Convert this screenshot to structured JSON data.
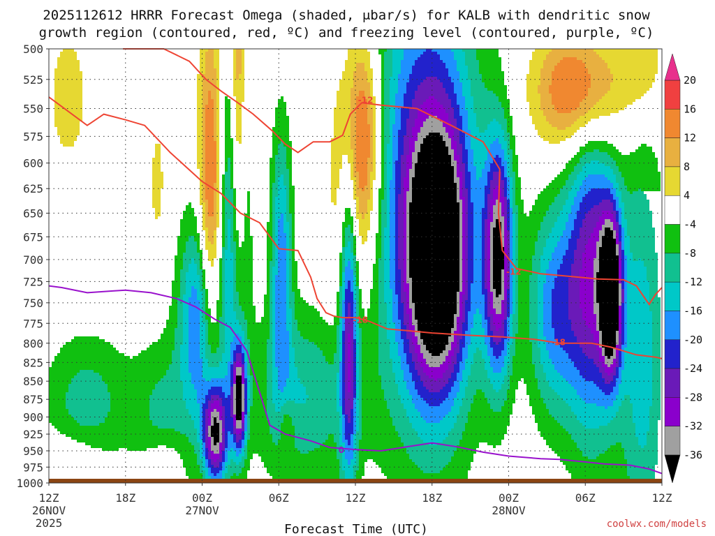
{
  "title": {
    "line1": "2025112612 HRRR Forecast Omega (shaded, μbar/s) for KALB with dendritic snow",
    "line2": "growth region (contoured, red, ºC) and freezing level (contoured, purple, ºC)"
  },
  "credit": "coolwx.com/models",
  "colors": {
    "dgz_contour": "#ee4433",
    "freezing_contour": "#9911cc",
    "ground": "#8b4513",
    "grid": "#333333"
  },
  "chart_data": {
    "type": "heatmap",
    "xlabel": "Forecast Time (UTC)",
    "ylabel": "",
    "x_hours": [
      0,
      48
    ],
    "ylim": [
      1000,
      500
    ],
    "y_log": true,
    "grid": true,
    "x_ticks": [
      {
        "hour": 0,
        "label": "12Z",
        "date": "26NOV",
        "year": "2025"
      },
      {
        "hour": 6,
        "label": "18Z"
      },
      {
        "hour": 12,
        "label": "00Z",
        "date": "27NOV"
      },
      {
        "hour": 18,
        "label": "06Z"
      },
      {
        "hour": 24,
        "label": "12Z"
      },
      {
        "hour": 30,
        "label": "18Z"
      },
      {
        "hour": 36,
        "label": "00Z",
        "date": "28NOV"
      },
      {
        "hour": 42,
        "label": "06Z"
      },
      {
        "hour": 48,
        "label": "12Z"
      }
    ],
    "y_ticks": [
      "500",
      "525",
      "550",
      "575",
      "600",
      "625",
      "650",
      "675",
      "700",
      "725",
      "750",
      "775",
      "800",
      "825",
      "850",
      "875",
      "900",
      "925",
      "950",
      "975",
      "1000"
    ],
    "colorbar": {
      "levels": [
        -40,
        -36,
        -32,
        -28,
        -24,
        -20,
        -16,
        -12,
        -8,
        -4,
        4,
        8,
        12,
        16,
        20,
        24
      ],
      "labels": [
        "20",
        "16",
        "12",
        "8",
        "4",
        "-4",
        "-8",
        "-12",
        "-16",
        "-20",
        "-24",
        "-28",
        "-32",
        "-36"
      ],
      "colors": [
        "#000000",
        "#a0a0a0",
        "#8a00cc",
        "#6a1ab8",
        "#2222cc",
        "#1e90ff",
        "#00c8c8",
        "#11c090",
        "#10c010",
        "#ffffff",
        "#e6d832",
        "#e8b040",
        "#f08830",
        "#f04040",
        "#e8308c"
      ]
    },
    "omega_centers": [
      {
        "hour": 12.7,
        "p": 670,
        "value": 22,
        "sx": 0.7,
        "sy": 0.22
      },
      {
        "hour": 14.8,
        "p": 570,
        "value": 20,
        "sx": 0.45,
        "sy": 0.22
      },
      {
        "hour": 13.0,
        "p": 925,
        "value": -38,
        "sx": 0.7,
        "sy": 0.06
      },
      {
        "hour": 14.9,
        "p": 875,
        "value": -36,
        "sx": 0.4,
        "sy": 0.06
      },
      {
        "hour": 12.0,
        "p": 770,
        "value": -24,
        "sx": 1.2,
        "sy": 0.12
      },
      {
        "hour": 14.5,
        "p": 650,
        "value": -20,
        "sx": 0.8,
        "sy": 0.2
      },
      {
        "hour": 30.4,
        "p": 700,
        "value": -40,
        "sx": 1.6,
        "sy": 0.14
      },
      {
        "hour": 29.5,
        "p": 620,
        "value": -24,
        "sx": 3.0,
        "sy": 0.28
      },
      {
        "hour": 35.2,
        "p": 700,
        "value": -36,
        "sx": 0.8,
        "sy": 0.13
      },
      {
        "hour": 44.0,
        "p": 740,
        "value": -40,
        "sx": 0.6,
        "sy": 0.09
      },
      {
        "hour": 42.5,
        "p": 720,
        "value": -28,
        "sx": 1.4,
        "sy": 0.18
      },
      {
        "hour": 39.5,
        "p": 760,
        "value": -18,
        "sx": 1.4,
        "sy": 0.12
      },
      {
        "hour": 23.5,
        "p": 780,
        "value": -26,
        "sx": 0.5,
        "sy": 0.18
      },
      {
        "hour": 18.2,
        "p": 700,
        "value": -18,
        "sx": 0.6,
        "sy": 0.15
      },
      {
        "hour": 24.7,
        "p": 580,
        "value": 18,
        "sx": 1.0,
        "sy": 0.12
      },
      {
        "hour": 23.4,
        "p": 630,
        "value": 8,
        "sx": 1.3,
        "sy": 0.18
      },
      {
        "hour": 41.5,
        "p": 535,
        "value": 20,
        "sx": 2.4,
        "sy": 0.07
      },
      {
        "hour": 46.5,
        "p": 510,
        "value": 8,
        "sx": 1.2,
        "sy": 0.06
      },
      {
        "hour": 1.5,
        "p": 540,
        "value": 6,
        "sx": 1.3,
        "sy": 0.09
      },
      {
        "hour": 8.5,
        "p": 620,
        "value": 5,
        "sx": 0.6,
        "sy": 0.1
      },
      {
        "hour": 3.0,
        "p": 880,
        "value": -10,
        "sx": 2.5,
        "sy": 0.08
      },
      {
        "hour": 9.0,
        "p": 910,
        "value": -9,
        "sx": 1.6,
        "sy": 0.1
      },
      {
        "hour": 20.0,
        "p": 870,
        "value": -12,
        "sx": 3.0,
        "sy": 0.1
      },
      {
        "hour": 46.5,
        "p": 820,
        "value": -14,
        "sx": 1.3,
        "sy": 0.25
      },
      {
        "hour": 1.5,
        "p": 960,
        "value": 5,
        "sx": 2.0,
        "sy": 0.03
      },
      {
        "hour": 9.0,
        "p": 960,
        "value": 6,
        "sx": 1.2,
        "sy": 0.03
      },
      {
        "hour": 18.6,
        "p": 915,
        "value": 8,
        "sx": 0.4,
        "sy": 0.03
      }
    ],
    "dgz_contours": [
      {
        "label": "-18",
        "points": [
          [
            0,
            540
          ],
          [
            3,
            565
          ],
          [
            4.3,
            555
          ],
          [
            6,
            560
          ],
          [
            7.5,
            565
          ],
          [
            9.5,
            590
          ],
          [
            12,
            618
          ],
          [
            13.5,
            630
          ],
          [
            15,
            650
          ],
          [
            16.5,
            660
          ],
          [
            18,
            688
          ],
          [
            19.5,
            690
          ],
          [
            20.5,
            720
          ],
          [
            21,
            745
          ],
          [
            21.7,
            762
          ],
          [
            22.3,
            766
          ],
          [
            23,
            768
          ],
          [
            24,
            768
          ],
          [
            25,
            772
          ],
          [
            26.5,
            782
          ],
          [
            28,
            784
          ],
          [
            30,
            787
          ],
          [
            33,
            790
          ],
          [
            35.5,
            792
          ],
          [
            38,
            795
          ],
          [
            40,
            800
          ],
          [
            42.5,
            800
          ],
          [
            44,
            805
          ],
          [
            46,
            815
          ],
          [
            47.5,
            818
          ],
          [
            48,
            820
          ]
        ]
      },
      {
        "label": "-12",
        "points": [
          [
            5.8,
            500
          ],
          [
            9,
            500
          ],
          [
            11,
            510
          ],
          [
            12.3,
            525
          ],
          [
            13.5,
            535
          ],
          [
            14.8,
            545
          ],
          [
            16,
            555
          ],
          [
            17.5,
            570
          ],
          [
            18.5,
            582
          ],
          [
            19.5,
            590
          ],
          [
            20.7,
            580
          ],
          [
            22,
            580
          ],
          [
            23,
            574
          ],
          [
            23.6,
            555
          ],
          [
            24.5,
            545
          ],
          [
            26,
            547
          ],
          [
            28.8,
            550
          ],
          [
            31.5,
            565
          ],
          [
            34,
            580
          ],
          [
            35.3,
            606
          ],
          [
            35.2,
            650
          ],
          [
            35.5,
            690
          ],
          [
            36.6,
            710
          ],
          [
            38.5,
            716
          ],
          [
            40.8,
            719
          ],
          [
            43,
            722
          ],
          [
            45,
            723
          ],
          [
            46,
            730
          ],
          [
            47,
            752
          ],
          [
            47.5,
            740
          ],
          [
            48,
            732
          ]
        ]
      }
    ],
    "freezing_contours": [
      {
        "label": "0",
        "points": [
          [
            0,
            730
          ],
          [
            1,
            732
          ],
          [
            3,
            738
          ],
          [
            5,
            736
          ],
          [
            6,
            735
          ],
          [
            8,
            738
          ],
          [
            10,
            745
          ],
          [
            11.5,
            755
          ],
          [
            13,
            770
          ],
          [
            14.2,
            780
          ],
          [
            15.5,
            810
          ],
          [
            16.5,
            865
          ],
          [
            17.3,
            912
          ],
          [
            18.5,
            925
          ],
          [
            20.5,
            935
          ],
          [
            22,
            945
          ],
          [
            24,
            948
          ],
          [
            26,
            950
          ],
          [
            28,
            944
          ],
          [
            30,
            938
          ],
          [
            32,
            944
          ],
          [
            34,
            952
          ],
          [
            36,
            958
          ],
          [
            38.5,
            962
          ],
          [
            40,
            963
          ],
          [
            42,
            967
          ],
          [
            43.5,
            970
          ],
          [
            45.5,
            972
          ],
          [
            47,
            978
          ],
          [
            48,
            985
          ]
        ]
      }
    ]
  }
}
